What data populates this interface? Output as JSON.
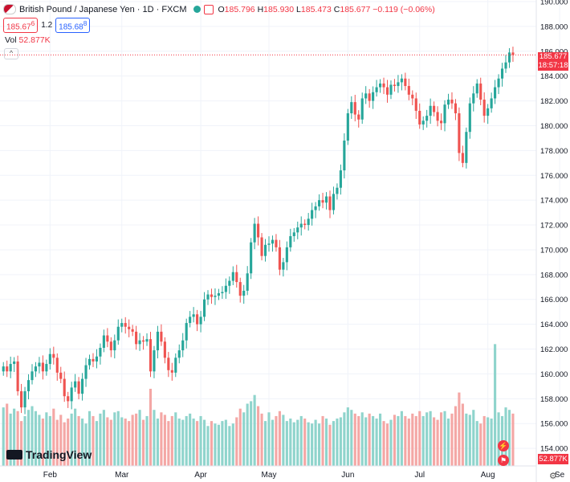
{
  "header": {
    "symbol_title": "British Pound / Japanese Yen · 1D · FXCM",
    "o_label": "O",
    "o_value": "185.796",
    "h_label": "H",
    "h_value": "185.930",
    "l_label": "L",
    "l_value": "185.473",
    "c_label": "C",
    "c_value": "185.677",
    "change": "−0.119 (−0.06%)"
  },
  "quote": {
    "sell": "185.67",
    "sell_sup": "6",
    "spread": "1.2",
    "buy": "185.68",
    "buy_sup": "8"
  },
  "volume_label": "Vol",
  "volume_value": "52.877K",
  "price_tag": {
    "price": "185.677",
    "countdown": "18:57:18"
  },
  "volume_tag": "52.877K",
  "logo_text": "TradingView",
  "colors": {
    "up": "#26a69a",
    "down": "#ef5350",
    "vol_up": "#8fd4cc",
    "vol_down": "#f4a7a5",
    "grid": "#f0f3fa",
    "price_line": "#f23645"
  },
  "chart_data": {
    "type": "candlestick",
    "yticks": [
      154,
      156,
      158,
      160,
      162,
      164,
      166,
      168,
      170,
      172,
      174,
      176,
      178,
      180,
      182,
      184,
      186,
      188,
      190
    ],
    "ylim": [
      153,
      190
    ],
    "months": [
      {
        "label": "Feb",
        "i": 13
      },
      {
        "label": "Mar",
        "i": 33
      },
      {
        "label": "Apr",
        "i": 55
      },
      {
        "label": "May",
        "i": 74
      },
      {
        "label": "Jun",
        "i": 96
      },
      {
        "label": "Jul",
        "i": 116
      },
      {
        "label": "Aug",
        "i": 135
      },
      {
        "label": "Se",
        "i": 155
      }
    ],
    "closes": [
      160.6,
      160.2,
      160.8,
      161.0,
      158.6,
      157.3,
      158.6,
      159.5,
      160.2,
      160.6,
      160.9,
      160.2,
      160.8,
      161.6,
      161.3,
      160.1,
      159.6,
      158.2,
      157.8,
      158.9,
      159.4,
      158.4,
      159.6,
      160.7,
      161.2,
      161.0,
      161.4,
      162.1,
      163.1,
      162.6,
      161.9,
      162.7,
      163.8,
      164.1,
      163.8,
      163.6,
      163.4,
      162.4,
      162.7,
      162.6,
      162.8,
      160.2,
      161.9,
      163.4,
      162.6,
      161.3,
      160.3,
      160.1,
      161.3,
      161.9,
      162.7,
      164.1,
      164.6,
      164.8,
      164.0,
      164.6,
      166.0,
      166.4,
      166.2,
      166.3,
      166.5,
      166.6,
      167.1,
      167.5,
      168.2,
      167.4,
      166.3,
      166.7,
      168.1,
      170.6,
      172.1,
      171.0,
      169.5,
      170.4,
      170.5,
      170.8,
      170.2,
      168.4,
      169.0,
      170.2,
      171.1,
      171.4,
      171.8,
      172.1,
      172.0,
      172.5,
      173.2,
      173.5,
      174.0,
      173.8,
      174.3,
      173.2,
      174.5,
      175.0,
      176.4,
      178.8,
      181.0,
      181.9,
      180.9,
      180.5,
      182.2,
      182.6,
      182.0,
      182.7,
      183.1,
      183.4,
      183.1,
      182.5,
      183.3,
      183.2,
      183.5,
      183.8,
      183.2,
      182.5,
      182.2,
      181.2,
      180.1,
      180.4,
      180.8,
      181.6,
      181.1,
      180.4,
      180.2,
      181.7,
      182.1,
      181.8,
      181.0,
      177.8,
      177.0,
      179.5,
      181.8,
      182.6,
      183.4,
      182.1,
      180.8,
      181.4,
      182.2,
      183.1,
      183.8,
      184.6,
      185.1,
      185.9,
      185.7
    ],
    "volumes": [
      157.3,
      157.6,
      156.8,
      157.2,
      157.0,
      156.2,
      156.6,
      157.1,
      157.4,
      157.0,
      156.7,
      156.4,
      156.9,
      156.6,
      157.2,
      156.3,
      156.7,
      156.1,
      156.4,
      156.8,
      157.2,
      156.6,
      156.4,
      156.0,
      157.0,
      156.6,
      156.2,
      156.8,
      157.1,
      156.5,
      156.3,
      156.9,
      157.0,
      156.5,
      156.4,
      156.2,
      156.7,
      156.8,
      157.1,
      156.3,
      156.6,
      158.8,
      157.1,
      156.4,
      156.9,
      156.7,
      156.2,
      156.6,
      156.9,
      156.4,
      156.3,
      156.6,
      156.8,
      156.4,
      156.2,
      156.6,
      156.3,
      155.8,
      156.2,
      156.0,
      155.9,
      156.2,
      156.3,
      155.8,
      156.0,
      156.5,
      157.2,
      156.9,
      157.6,
      157.8,
      158.3,
      157.4,
      156.8,
      156.2,
      156.9,
      156.3,
      156.6,
      157.0,
      156.7,
      156.2,
      156.4,
      156.1,
      156.3,
      156.6,
      156.4,
      156.1,
      156.0,
      156.3,
      156.0,
      156.6,
      156.4,
      155.9,
      156.2,
      156.4,
      156.5,
      156.9,
      157.3,
      157.1,
      156.8,
      156.6,
      156.9,
      156.5,
      156.8,
      156.6,
      156.4,
      156.8,
      156.2,
      156.0,
      156.3,
      156.7,
      156.6,
      157.0,
      156.6,
      156.4,
      156.8,
      156.6,
      157.0,
      156.6,
      156.9,
      157.0,
      156.5,
      156.3,
      156.9,
      157.0,
      156.4,
      156.8,
      157.4,
      158.5,
      157.6,
      156.8,
      156.7,
      157.1,
      156.2,
      156.0,
      156.6,
      156.5,
      156.4,
      162.4,
      156.9,
      156.6,
      157.3,
      157.1,
      156.8
    ]
  }
}
